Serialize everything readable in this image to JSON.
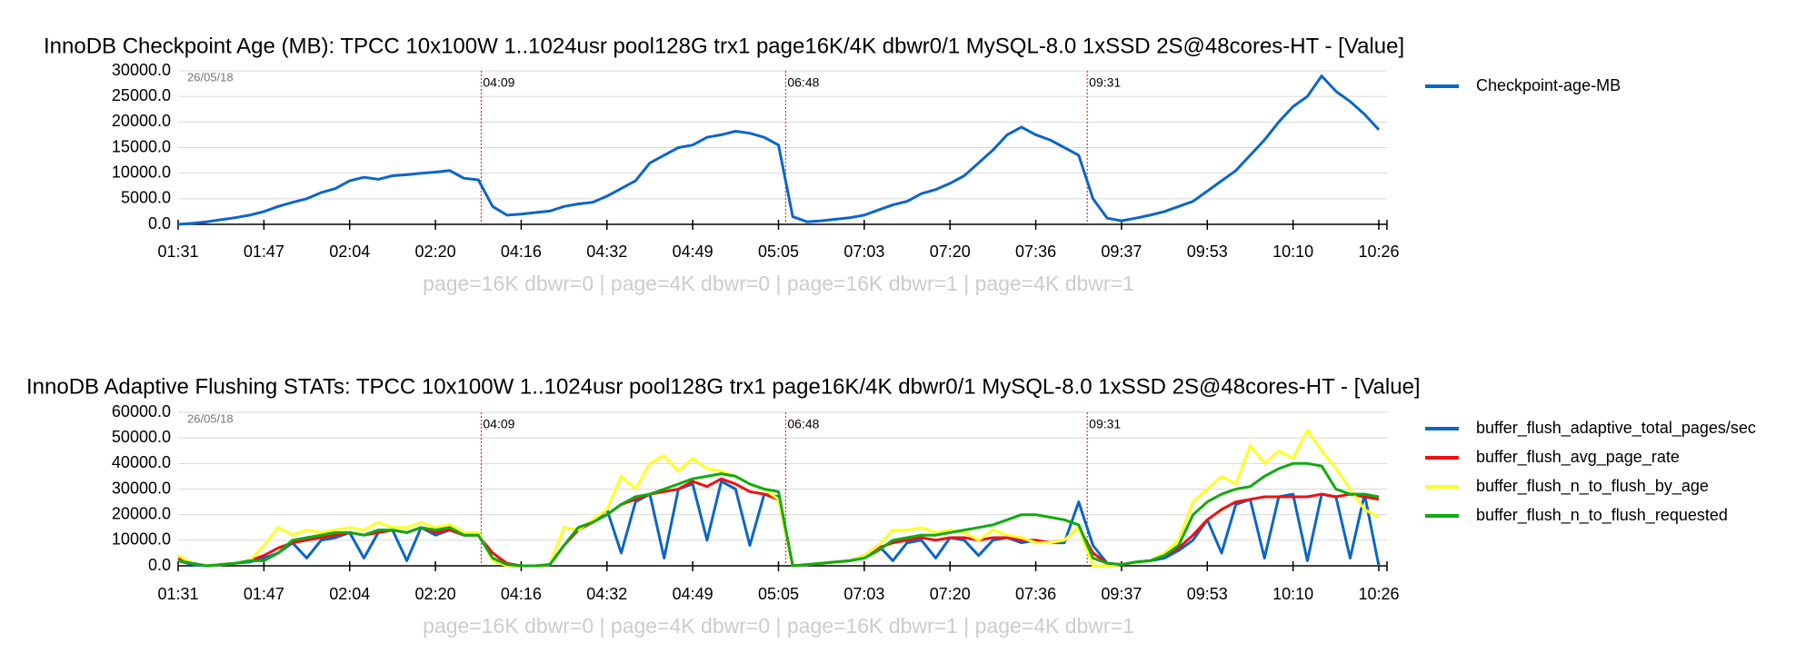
{
  "chart_data": [
    {
      "type": "line",
      "title": "InnoDB Checkpoint Age (MB): TPCC 10x100W 1..1024usr pool128G trx1 page16K/4K dbwr0/1 MySQL-8.0 1xSSD 2S@48cores-HT - [Value]",
      "subtitle": "page=16K dbwr=0 | page=4K dbwr=0 | page=16K dbwr=1 | page=4K dbwr=1",
      "date_label": "26/05/18",
      "markers": [
        "04:09",
        "06:48",
        "09:31"
      ],
      "marker_color": "#ff0000",
      "categories": [
        "01:31",
        null,
        null,
        null,
        null,
        null,
        "01:47",
        null,
        null,
        null,
        null,
        null,
        "02:04",
        null,
        null,
        null,
        null,
        null,
        "02:20",
        null,
        null,
        null,
        null,
        null,
        "04:16",
        null,
        null,
        null,
        null,
        null,
        "04:32",
        null,
        null,
        null,
        null,
        null,
        "04:49",
        null,
        null,
        null,
        null,
        null,
        "05:05",
        null,
        null,
        null,
        null,
        null,
        "07:03",
        null,
        null,
        null,
        null,
        null,
        "07:20",
        null,
        null,
        null,
        null,
        null,
        "07:36",
        null,
        null,
        null,
        null,
        null,
        "09:37",
        null,
        null,
        null,
        null,
        null,
        "09:53",
        null,
        null,
        null,
        null,
        null,
        "10:10",
        null,
        null,
        null,
        null,
        null,
        "10:26"
      ],
      "series": [
        {
          "name": "Checkpoint-age-MB",
          "color": "#0b66c8",
          "values": [
            0,
            200,
            500,
            900,
            1300,
            1800,
            2500,
            3500,
            4300,
            5000,
            6200,
            7000,
            8500,
            9200,
            8800,
            9500,
            9700,
            10000,
            10200,
            10500,
            9000,
            8700,
            3500,
            1800,
            2000,
            2300,
            2600,
            3500,
            4000,
            4300,
            5500,
            7000,
            8500,
            12000,
            13500,
            15000,
            15500,
            17000,
            17500,
            18200,
            17800,
            17000,
            15500,
            1500,
            500,
            700,
            1000,
            1300,
            1800,
            2800,
            3800,
            4500,
            6000,
            6800,
            8000,
            9500,
            12000,
            14500,
            17500,
            19000,
            17500,
            16500,
            15000,
            13500,
            5000,
            1200,
            700,
            1200,
            1800,
            2500,
            3500,
            4500,
            6500,
            8500,
            10500,
            13500,
            16500,
            20000,
            23000,
            25000,
            29000,
            26000,
            24000,
            21500,
            18500
          ]
        }
      ],
      "ylim": [
        0,
        30000
      ],
      "yticks": [
        {
          "value": 0,
          "label": "0.0"
        },
        {
          "value": 5000,
          "label": "5000.0"
        },
        {
          "value": 10000,
          "label": "10000.0"
        },
        {
          "value": 15000,
          "label": "15000.0"
        },
        {
          "value": 20000,
          "label": "20000.0"
        },
        {
          "value": 25000,
          "label": "25000.0"
        },
        {
          "value": 30000,
          "label": "30000.0"
        }
      ],
      "grid": true
    },
    {
      "type": "line",
      "title": "InnoDB Adaptive Flushing STATs: TPCC 10x100W 1..1024usr pool128G trx1 page16K/4K dbwr0/1 MySQL-8.0 1xSSD 2S@48cores-HT - [Value]",
      "subtitle": "page=16K dbwr=0 | page=4K dbwr=0 | page=16K dbwr=1 | page=4K dbwr=1",
      "date_label": "26/05/18",
      "markers": [
        "04:09",
        "06:48",
        "09:31"
      ],
      "marker_color": "#ff0000",
      "categories": [
        "01:31",
        null,
        null,
        null,
        null,
        null,
        "01:47",
        null,
        null,
        null,
        null,
        null,
        "02:04",
        null,
        null,
        null,
        null,
        null,
        "02:20",
        null,
        null,
        null,
        null,
        null,
        "04:16",
        null,
        null,
        null,
        null,
        null,
        "04:32",
        null,
        null,
        null,
        null,
        null,
        "04:49",
        null,
        null,
        null,
        null,
        null,
        "05:05",
        null,
        null,
        null,
        null,
        null,
        "07:03",
        null,
        null,
        null,
        null,
        null,
        "07:20",
        null,
        null,
        null,
        null,
        null,
        "07:36",
        null,
        null,
        null,
        null,
        null,
        "09:37",
        null,
        null,
        null,
        null,
        null,
        "09:53",
        null,
        null,
        null,
        null,
        null,
        "10:10",
        null,
        null,
        null,
        null,
        null,
        "10:26"
      ],
      "series": [
        {
          "name": "buffer_flush_adaptive_total_pages/sec",
          "color": "#0b66c8",
          "values": [
            2000,
            500,
            0,
            500,
            1000,
            1500,
            3000,
            5000,
            9000,
            3000,
            10000,
            11000,
            13000,
            3000,
            13000,
            14000,
            2000,
            15000,
            12000,
            14000,
            12000,
            12000,
            3000,
            500,
            0,
            0,
            500,
            8000,
            15000,
            17000,
            22000,
            5000,
            25000,
            28000,
            3000,
            30000,
            32000,
            10000,
            33000,
            30000,
            8000,
            28000,
            27000,
            0,
            500,
            1000,
            1500,
            2000,
            4000,
            8000,
            2000,
            9000,
            10000,
            3000,
            11000,
            10000,
            4000,
            10000,
            11000,
            9000,
            10000,
            9000,
            9000,
            25000,
            8000,
            1000,
            500,
            1500,
            2000,
            3000,
            6000,
            10000,
            18000,
            5000,
            24000,
            26000,
            3000,
            27000,
            28000,
            2000,
            28000,
            27000,
            3000,
            28000,
            0
          ]
        },
        {
          "name": "buffer_flush_avg_page_rate",
          "color": "#ee1111",
          "values": [
            3000,
            1000,
            0,
            500,
            1000,
            2000,
            4000,
            7000,
            9000,
            10000,
            11000,
            12000,
            13000,
            12000,
            13000,
            14000,
            13000,
            15000,
            13000,
            14000,
            12000,
            12000,
            5000,
            1000,
            0,
            0,
            500,
            8000,
            14000,
            17000,
            20000,
            24000,
            26000,
            28000,
            29000,
            30000,
            33000,
            31000,
            34000,
            32000,
            29000,
            28000,
            26000,
            0,
            500,
            1000,
            1500,
            2000,
            4000,
            7000,
            9000,
            10000,
            11000,
            10000,
            11000,
            11000,
            10000,
            11000,
            11000,
            10000,
            10000,
            9000,
            10000,
            15000,
            5000,
            1000,
            500,
            1500,
            2000,
            4000,
            7000,
            12000,
            18000,
            22000,
            25000,
            26000,
            27000,
            27000,
            27000,
            27000,
            28000,
            27000,
            28000,
            27000,
            26000
          ]
        },
        {
          "name": "buffer_flush_n_to_flush_by_age",
          "color": "#ffff22",
          "values": [
            4000,
            1000,
            0,
            500,
            1000,
            2000,
            8000,
            15000,
            12000,
            14000,
            13000,
            14000,
            15000,
            14000,
            17000,
            15000,
            15000,
            17000,
            15000,
            16000,
            13000,
            13000,
            2000,
            0,
            0,
            0,
            500,
            15000,
            14000,
            18000,
            22000,
            35000,
            30000,
            40000,
            43000,
            37000,
            42000,
            38000,
            37000,
            35000,
            32000,
            30000,
            26000,
            0,
            500,
            1000,
            1500,
            2000,
            4000,
            8000,
            14000,
            14000,
            15000,
            13000,
            14000,
            13000,
            10000,
            14000,
            12000,
            11000,
            9000,
            9000,
            10000,
            15000,
            0,
            0,
            500,
            1500,
            2000,
            5000,
            10000,
            25000,
            30000,
            35000,
            32000,
            47000,
            40000,
            45000,
            42000,
            53000,
            45000,
            38000,
            30000,
            22000,
            19000
          ]
        },
        {
          "name": "buffer_flush_n_to_flush_requested",
          "color": "#11aa11",
          "values": [
            2000,
            1000,
            0,
            500,
            1000,
            2000,
            2000,
            5000,
            10000,
            11000,
            12000,
            13000,
            13000,
            12000,
            14000,
            14000,
            13000,
            15000,
            14000,
            15000,
            12000,
            12000,
            3000,
            500,
            0,
            0,
            500,
            8000,
            15000,
            17000,
            20000,
            24000,
            27000,
            28000,
            30000,
            32000,
            34000,
            35000,
            36000,
            35000,
            32000,
            30000,
            29000,
            0,
            500,
            1000,
            1500,
            2000,
            3000,
            6000,
            10000,
            11000,
            12000,
            12000,
            13000,
            14000,
            15000,
            16000,
            18000,
            20000,
            20000,
            19000,
            18000,
            16000,
            3000,
            1000,
            500,
            1500,
            2000,
            4000,
            8000,
            20000,
            25000,
            28000,
            30000,
            31000,
            35000,
            38000,
            40000,
            40000,
            39000,
            30000,
            28000,
            28000,
            27000
          ]
        }
      ],
      "ylim": [
        0,
        60000
      ],
      "yticks": [
        {
          "value": 0,
          "label": "0.0"
        },
        {
          "value": 10000,
          "label": "10000.0"
        },
        {
          "value": 20000,
          "label": "20000.0"
        },
        {
          "value": 30000,
          "label": "30000.0"
        },
        {
          "value": 40000,
          "label": "40000.0"
        },
        {
          "value": 50000,
          "label": "50000.0"
        },
        {
          "value": 60000,
          "label": "60000.0"
        }
      ],
      "grid": true
    }
  ]
}
